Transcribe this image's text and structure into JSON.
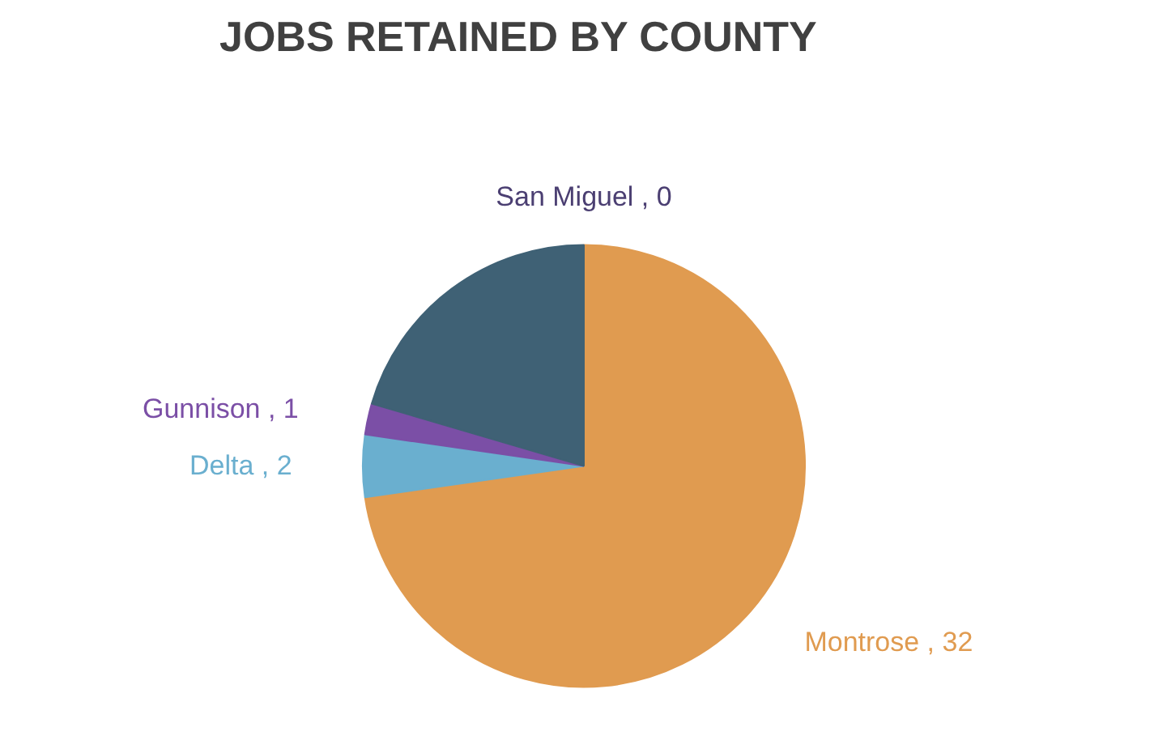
{
  "chart_data": {
    "type": "pie",
    "title": "JOBS RETAINED BY COUNTY",
    "categories": [
      "Montrose",
      "Delta",
      "Gunnison",
      null,
      "San Miguel"
    ],
    "values": [
      32,
      2,
      1,
      9,
      0
    ],
    "colors": [
      "#e09b50",
      "#6aafcf",
      "#7b4fa6",
      "#3f6175",
      "#4b3f72"
    ],
    "value_labels": [
      ", 32",
      ", 2",
      ", 1",
      null,
      ", 0"
    ]
  }
}
